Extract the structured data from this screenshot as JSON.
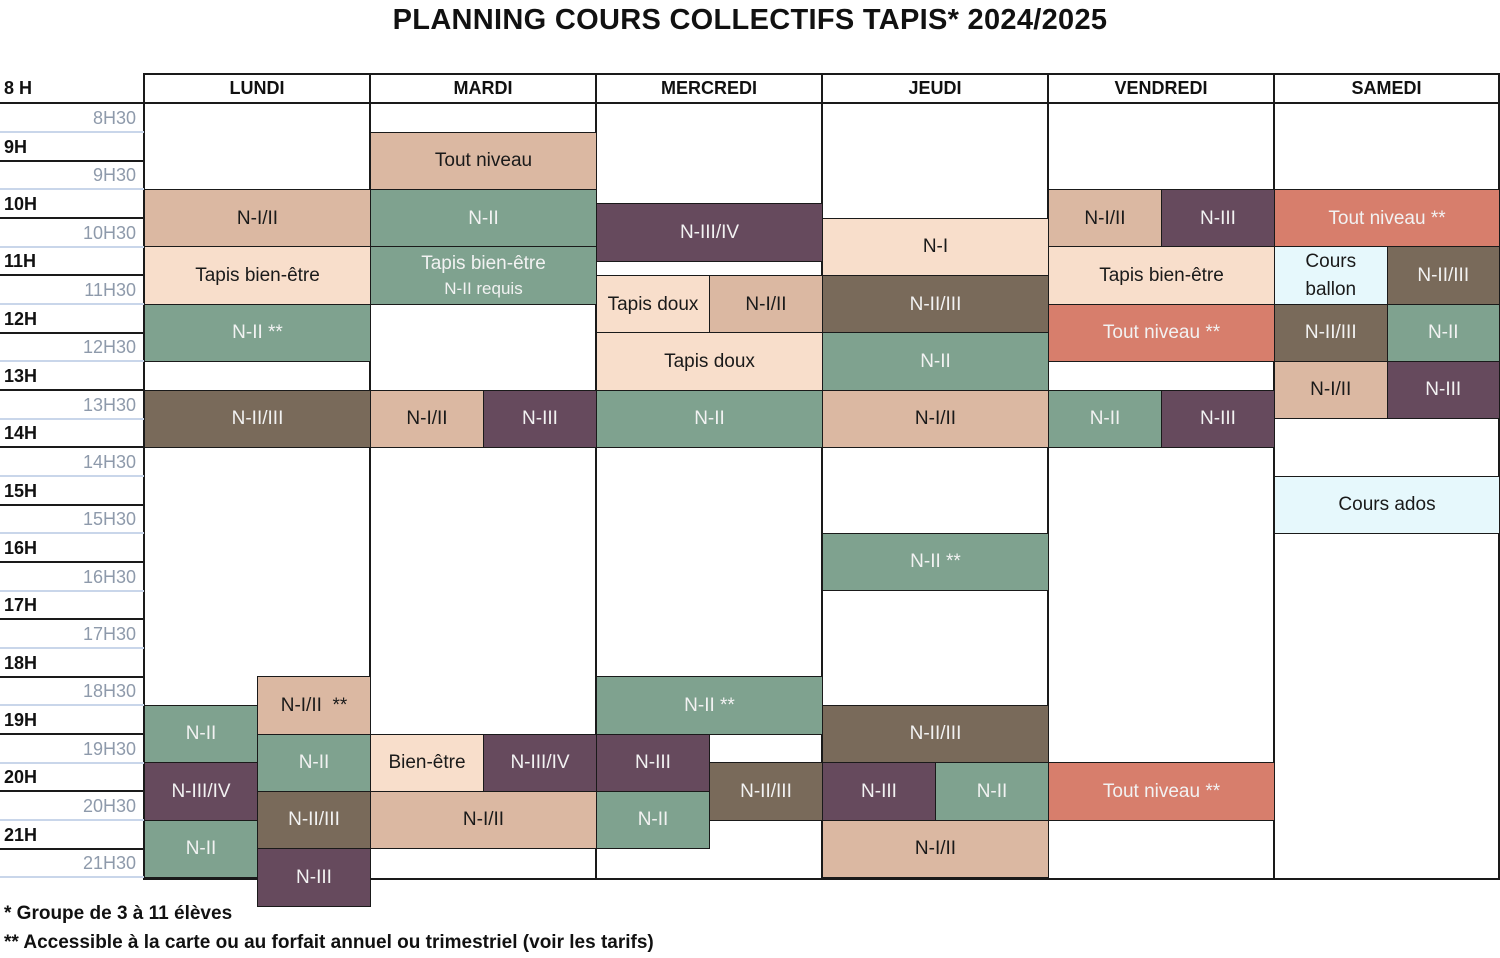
{
  "title": "PLANNING COURS COLLECTIFS TAPIS* 2024/2025",
  "corner_label": "8 H",
  "days": [
    "LUNDI",
    "MARDI",
    "MERCREDI",
    "JEUDI",
    "VENDREDI",
    "SAMEDI"
  ],
  "time_labels": [
    "8H30",
    "9H",
    "9H30",
    "10H",
    "10H30",
    "11H",
    "11H30",
    "12H",
    "12H30",
    "13H",
    "13H30",
    "14H",
    "14H30",
    "15H",
    "15H30",
    "16H",
    "16H30",
    "17H",
    "17H30",
    "18H",
    "18H30",
    "19H",
    "19H30",
    "20H",
    "20H30",
    "21H",
    "21H30"
  ],
  "colors": {
    "tan": "#dbb8a2",
    "sage": "#7fa28f",
    "plum": "#664a5d",
    "brown": "#796a5a",
    "peach": "#f8decb",
    "coral": "#d77e6c",
    "lightblue": "#e6f8fc"
  },
  "sessions": [
    {
      "day": 0,
      "lane": 0,
      "lanes": 1,
      "start": "9:30",
      "end": "10:30",
      "label": "N-I/II",
      "color": "tan"
    },
    {
      "day": 0,
      "lane": 0,
      "lanes": 1,
      "start": "10:30",
      "end": "11:30",
      "label": "Tapis bien-être",
      "color": "peach"
    },
    {
      "day": 0,
      "lane": 0,
      "lanes": 1,
      "start": "11:30",
      "end": "12:30",
      "label": "N-II **",
      "color": "sage"
    },
    {
      "day": 0,
      "lane": 0,
      "lanes": 1,
      "start": "13:00",
      "end": "14:00",
      "label": "N-II/III",
      "color": "brown"
    },
    {
      "day": 0,
      "lane": 1,
      "lanes": 2,
      "start": "18:00",
      "end": "19:00",
      "label": "N-I/II  **",
      "color": "tan"
    },
    {
      "day": 0,
      "lane": 0,
      "lanes": 2,
      "start": "18:30",
      "end": "19:30",
      "label": "N-II",
      "color": "sage"
    },
    {
      "day": 0,
      "lane": 1,
      "lanes": 2,
      "start": "19:00",
      "end": "20:00",
      "label": "N-II",
      "color": "sage"
    },
    {
      "day": 0,
      "lane": 0,
      "lanes": 2,
      "start": "19:30",
      "end": "20:30",
      "label": "N-III/IV",
      "color": "plum"
    },
    {
      "day": 0,
      "lane": 1,
      "lanes": 2,
      "start": "20:00",
      "end": "21:00",
      "label": "N-II/III",
      "color": "brown"
    },
    {
      "day": 0,
      "lane": 0,
      "lanes": 2,
      "start": "20:30",
      "end": "21:30",
      "label": "N-II",
      "color": "sage"
    },
    {
      "day": 0,
      "lane": 1,
      "lanes": 2,
      "start": "21:00",
      "end": "22:00",
      "label": "N-III",
      "color": "plum"
    },
    {
      "day": 1,
      "lane": 0,
      "lanes": 1,
      "start": "8:30",
      "end": "9:30",
      "label": "Tout niveau",
      "color": "tan"
    },
    {
      "day": 1,
      "lane": 0,
      "lanes": 1,
      "start": "9:30",
      "end": "10:30",
      "label": "N-II",
      "color": "sage"
    },
    {
      "day": 1,
      "lane": 0,
      "lanes": 1,
      "start": "10:30",
      "end": "11:30",
      "label": "Tapis bien-être",
      "sublabel": "N-II requis",
      "color": "sage"
    },
    {
      "day": 1,
      "lane": 0,
      "lanes": 2,
      "start": "13:00",
      "end": "14:00",
      "label": "N-I/II",
      "color": "tan"
    },
    {
      "day": 1,
      "lane": 1,
      "lanes": 2,
      "start": "13:00",
      "end": "14:00",
      "label": "N-III",
      "color": "plum"
    },
    {
      "day": 1,
      "lane": 0,
      "lanes": 2,
      "start": "19:00",
      "end": "20:00",
      "label": "Bien-être",
      "color": "peach"
    },
    {
      "day": 1,
      "lane": 1,
      "lanes": 2,
      "start": "19:00",
      "end": "20:00",
      "label": "N-III/IV",
      "color": "plum"
    },
    {
      "day": 1,
      "lane": 0,
      "lanes": 1,
      "start": "20:00",
      "end": "21:00",
      "label": "N-I/II",
      "color": "tan"
    },
    {
      "day": 2,
      "lane": 0,
      "lanes": 1,
      "start": "9:45",
      "end": "10:45",
      "label": "N-III/IV",
      "color": "plum"
    },
    {
      "day": 2,
      "lane": 0,
      "lanes": 2,
      "start": "11:00",
      "end": "12:00",
      "label": "Tapis doux",
      "color": "peach"
    },
    {
      "day": 2,
      "lane": 1,
      "lanes": 2,
      "start": "11:00",
      "end": "12:00",
      "label": "N-I/II",
      "color": "tan"
    },
    {
      "day": 2,
      "lane": 0,
      "lanes": 1,
      "start": "12:00",
      "end": "13:00",
      "label": "Tapis doux",
      "color": "peach"
    },
    {
      "day": 2,
      "lane": 0,
      "lanes": 1,
      "start": "13:00",
      "end": "14:00",
      "label": "N-II",
      "color": "sage"
    },
    {
      "day": 2,
      "lane": 0,
      "lanes": 1,
      "start": "18:00",
      "end": "19:00",
      "label": "N-II **",
      "color": "sage"
    },
    {
      "day": 2,
      "lane": 0,
      "lanes": 2,
      "start": "19:00",
      "end": "20:00",
      "label": "N-III",
      "color": "plum"
    },
    {
      "day": 2,
      "lane": 1,
      "lanes": 2,
      "start": "19:30",
      "end": "20:30",
      "label": "N-II/III",
      "color": "brown"
    },
    {
      "day": 2,
      "lane": 0,
      "lanes": 2,
      "start": "20:00",
      "end": "21:00",
      "label": "N-II",
      "color": "sage"
    },
    {
      "day": 3,
      "lane": 0,
      "lanes": 1,
      "start": "10:00",
      "end": "11:00",
      "label": "N-I",
      "color": "peach"
    },
    {
      "day": 3,
      "lane": 0,
      "lanes": 1,
      "start": "11:00",
      "end": "12:00",
      "label": "N-II/III",
      "color": "brown"
    },
    {
      "day": 3,
      "lane": 0,
      "lanes": 1,
      "start": "12:00",
      "end": "13:00",
      "label": "N-II",
      "color": "sage"
    },
    {
      "day": 3,
      "lane": 0,
      "lanes": 1,
      "start": "13:00",
      "end": "14:00",
      "label": "N-I/II",
      "color": "tan"
    },
    {
      "day": 3,
      "lane": 0,
      "lanes": 1,
      "start": "15:30",
      "end": "16:30",
      "label": "N-II **",
      "color": "sage"
    },
    {
      "day": 3,
      "lane": 0,
      "lanes": 1,
      "start": "18:30",
      "end": "19:30",
      "label": "N-II/III",
      "color": "brown"
    },
    {
      "day": 3,
      "lane": 0,
      "lanes": 2,
      "start": "19:30",
      "end": "20:30",
      "label": "N-III",
      "color": "plum"
    },
    {
      "day": 3,
      "lane": 1,
      "lanes": 2,
      "start": "19:30",
      "end": "20:30",
      "label": "N-II",
      "color": "sage"
    },
    {
      "day": 3,
      "lane": 0,
      "lanes": 1,
      "start": "20:30",
      "end": "21:30",
      "label": "N-I/II",
      "color": "tan"
    },
    {
      "day": 4,
      "lane": 0,
      "lanes": 2,
      "start": "9:30",
      "end": "10:30",
      "label": "N-I/II",
      "color": "tan"
    },
    {
      "day": 4,
      "lane": 1,
      "lanes": 2,
      "start": "9:30",
      "end": "10:30",
      "label": "N-III",
      "color": "plum"
    },
    {
      "day": 4,
      "lane": 0,
      "lanes": 1,
      "start": "10:30",
      "end": "11:30",
      "label": "Tapis bien-être",
      "color": "peach"
    },
    {
      "day": 4,
      "lane": 0,
      "lanes": 1,
      "start": "11:30",
      "end": "12:30",
      "label": "Tout niveau **",
      "color": "coral"
    },
    {
      "day": 4,
      "lane": 0,
      "lanes": 2,
      "start": "13:00",
      "end": "14:00",
      "label": "N-II",
      "color": "sage"
    },
    {
      "day": 4,
      "lane": 1,
      "lanes": 2,
      "start": "13:00",
      "end": "14:00",
      "label": "N-III",
      "color": "plum"
    },
    {
      "day": 4,
      "lane": 0,
      "lanes": 1,
      "start": "19:30",
      "end": "20:30",
      "label": "Tout niveau **",
      "color": "coral"
    },
    {
      "day": 5,
      "lane": 0,
      "lanes": 1,
      "start": "9:30",
      "end": "10:30",
      "label": "Tout niveau **",
      "color": "coral"
    },
    {
      "day": 5,
      "lane": 0,
      "lanes": 2,
      "start": "10:30",
      "end": "11:30",
      "label": "Cours",
      "sublabel": "ballon",
      "color": "lightblue"
    },
    {
      "day": 5,
      "lane": 1,
      "lanes": 2,
      "start": "10:30",
      "end": "11:30",
      "label": "N-II/III",
      "color": "brown"
    },
    {
      "day": 5,
      "lane": 0,
      "lanes": 2,
      "start": "11:30",
      "end": "12:30",
      "label": "N-II/III",
      "color": "brown"
    },
    {
      "day": 5,
      "lane": 1,
      "lanes": 2,
      "start": "11:30",
      "end": "12:30",
      "label": "N-II",
      "color": "sage"
    },
    {
      "day": 5,
      "lane": 0,
      "lanes": 2,
      "start": "12:30",
      "end": "13:30",
      "label": "N-I/II",
      "color": "tan"
    },
    {
      "day": 5,
      "lane": 1,
      "lanes": 2,
      "start": "12:30",
      "end": "13:30",
      "label": "N-III",
      "color": "plum"
    },
    {
      "day": 5,
      "lane": 0,
      "lanes": 1,
      "start": "14:30",
      "end": "15:30",
      "label": "Cours ados",
      "color": "lightblue"
    }
  ],
  "footnotes": [
    "* Groupe de 3 à 11 élèves",
    "** Accessible à la carte ou au forfait annuel ou trimestriel (voir les tarifs)"
  ]
}
